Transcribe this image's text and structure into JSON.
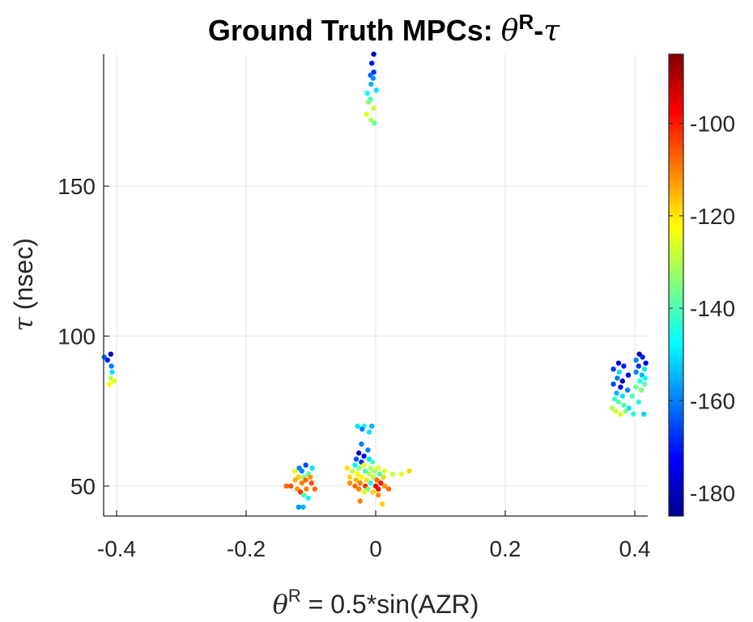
{
  "chart_data": {
    "type": "scatter",
    "title": {
      "prefix": "Ground Truth MPCs: ",
      "theta": "θ",
      "sup": "R",
      "dash": "-",
      "tau": "τ"
    },
    "xlabel": {
      "theta": "θ",
      "sup": "R",
      "rest": " = 0.5*sin(AZR)"
    },
    "ylabel": {
      "tau": "τ",
      "rest": " (nsec)"
    },
    "xlim": [
      -0.42,
      0.42
    ],
    "ylim": [
      40,
      194
    ],
    "xticks": [
      {
        "value": -0.4,
        "label": "-0.4"
      },
      {
        "value": -0.2,
        "label": "-0.2"
      },
      {
        "value": 0,
        "label": "0"
      },
      {
        "value": 0.2,
        "label": "0.2"
      },
      {
        "value": 0.4,
        "label": "0.4"
      }
    ],
    "yticks": [
      {
        "value": 50,
        "label": "50"
      },
      {
        "value": 100,
        "label": "100"
      },
      {
        "value": 150,
        "label": "150"
      }
    ],
    "grid": true,
    "colorbar": {
      "colormap": "jet",
      "clim": [
        -185,
        -85
      ],
      "ticks": [
        {
          "value": -100,
          "label": "-100"
        },
        {
          "value": -120,
          "label": "-120"
        },
        {
          "value": -140,
          "label": "-140"
        },
        {
          "value": -160,
          "label": "-160"
        },
        {
          "value": -180,
          "label": "-180"
        }
      ]
    },
    "points": [
      [
        -0.003,
        194,
        -178
      ],
      [
        -0.006,
        191,
        -172
      ],
      [
        -0.003,
        188,
        -168
      ],
      [
        -0.008,
        187,
        -162
      ],
      [
        -0.004,
        186,
        -158
      ],
      [
        -0.007,
        184,
        -155
      ],
      [
        0.001,
        182,
        -150
      ],
      [
        -0.013,
        181,
        -146
      ],
      [
        -0.008,
        179,
        -140
      ],
      [
        -0.011,
        178,
        -135
      ],
      [
        -0.003,
        176,
        -128
      ],
      [
        -0.014,
        174,
        -125
      ],
      [
        -0.007,
        172,
        -130
      ],
      [
        -0.002,
        171,
        -138
      ],
      [
        -0.419,
        93,
        -162
      ],
      [
        -0.409,
        94,
        -178
      ],
      [
        -0.414,
        92,
        -170
      ],
      [
        -0.408,
        90,
        -160
      ],
      [
        -0.407,
        88,
        -150
      ],
      [
        -0.409,
        86,
        -130
      ],
      [
        -0.404,
        85,
        -125
      ],
      [
        -0.411,
        84,
        -122
      ],
      [
        0.375,
        91,
        -175
      ],
      [
        0.383,
        90,
        -170
      ],
      [
        0.367,
        89,
        -168
      ],
      [
        0.376,
        88,
        -150
      ],
      [
        0.39,
        87,
        -175
      ],
      [
        0.373,
        86,
        -160
      ],
      [
        0.381,
        85,
        -180
      ],
      [
        0.367,
        84,
        -165
      ],
      [
        0.378,
        83,
        -172
      ],
      [
        0.389,
        82,
        -160
      ],
      [
        0.372,
        81,
        -155
      ],
      [
        0.381,
        80,
        -150
      ],
      [
        0.369,
        79,
        -142
      ],
      [
        0.375,
        78,
        -138
      ],
      [
        0.383,
        77,
        -140
      ],
      [
        0.365,
        76,
        -130
      ],
      [
        0.37,
        75,
        -128
      ],
      [
        0.378,
        74,
        -126
      ],
      [
        0.386,
        75,
        -135
      ],
      [
        0.407,
        94,
        -178
      ],
      [
        0.412,
        93,
        -170
      ],
      [
        0.402,
        92,
        -160
      ],
      [
        0.417,
        91,
        -175
      ],
      [
        0.406,
        90,
        -168
      ],
      [
        0.415,
        89,
        -150
      ],
      [
        0.402,
        88,
        -160
      ],
      [
        0.411,
        87,
        -155
      ],
      [
        0.416,
        86,
        -148
      ],
      [
        0.408,
        85,
        -145
      ],
      [
        0.415,
        84,
        -140
      ],
      [
        0.402,
        83,
        -138
      ],
      [
        0.41,
        82,
        -135
      ],
      [
        0.396,
        80,
        -140
      ],
      [
        0.406,
        78,
        -145
      ],
      [
        0.391,
        76,
        -150
      ],
      [
        0.414,
        74,
        -152
      ],
      [
        0.398,
        74,
        -145
      ],
      [
        -0.108,
        57,
        -165
      ],
      [
        -0.118,
        56,
        -160
      ],
      [
        -0.098,
        56,
        -150
      ],
      [
        -0.125,
        55,
        -125
      ],
      [
        -0.114,
        55,
        -160
      ],
      [
        -0.104,
        54,
        -140
      ],
      [
        -0.111,
        53,
        -135
      ],
      [
        -0.119,
        53,
        -118
      ],
      [
        -0.101,
        53,
        -112
      ],
      [
        -0.124,
        52,
        -115
      ],
      [
        -0.108,
        52,
        -108
      ],
      [
        -0.114,
        51,
        -110
      ],
      [
        -0.099,
        51,
        -105
      ],
      [
        -0.138,
        50,
        -108
      ],
      [
        -0.131,
        50,
        -105
      ],
      [
        -0.121,
        49,
        -112
      ],
      [
        -0.107,
        49,
        -110
      ],
      [
        -0.094,
        49,
        -108
      ],
      [
        -0.116,
        48,
        -102
      ],
      [
        -0.111,
        47,
        -140
      ],
      [
        -0.104,
        46,
        -148
      ],
      [
        -0.119,
        43,
        -158
      ],
      [
        -0.112,
        43,
        -155
      ],
      [
        -0.028,
        70,
        -150
      ],
      [
        -0.018,
        70,
        -148
      ],
      [
        -0.006,
        70,
        -155
      ],
      [
        -0.021,
        69,
        -160
      ],
      [
        -0.01,
        68,
        -150
      ],
      [
        -0.022,
        64,
        -160
      ],
      [
        -0.012,
        62,
        -160
      ],
      [
        -0.026,
        61,
        -178
      ],
      [
        -0.018,
        60,
        -172
      ],
      [
        -0.03,
        59,
        -165
      ],
      [
        -0.01,
        59,
        -150
      ],
      [
        -0.022,
        58,
        -168
      ],
      [
        -0.005,
        58,
        -140
      ],
      [
        -0.032,
        57,
        -148
      ],
      [
        -0.018,
        57,
        -125
      ],
      [
        -0.044,
        56,
        -120
      ],
      [
        -0.026,
        56,
        -135
      ],
      [
        -0.008,
        56,
        -130
      ],
      [
        0.004,
        56,
        -125
      ],
      [
        -0.036,
        55,
        -128
      ],
      [
        -0.016,
        55,
        -140
      ],
      [
        -0.002,
        55,
        -132
      ],
      [
        0.014,
        55,
        -125
      ],
      [
        -0.028,
        54,
        -122
      ],
      [
        -0.01,
        54,
        -130
      ],
      [
        0.006,
        54,
        -140
      ],
      [
        0.052,
        55,
        -118
      ],
      [
        0.04,
        54,
        -125
      ],
      [
        0.026,
        54,
        -128
      ],
      [
        -0.04,
        53,
        -118
      ],
      [
        -0.022,
        53,
        -122
      ],
      [
        -0.004,
        53,
        -130
      ],
      [
        0.012,
        53,
        -118
      ],
      [
        -0.03,
        52,
        -115
      ],
      [
        -0.014,
        52,
        -120
      ],
      [
        0.002,
        52,
        -108
      ],
      [
        -0.04,
        51,
        -112
      ],
      [
        -0.024,
        51,
        -110
      ],
      [
        -0.008,
        51,
        -145
      ],
      [
        0.008,
        51,
        -100
      ],
      [
        -0.032,
        50,
        -108
      ],
      [
        -0.016,
        50,
        -102
      ],
      [
        0.0,
        50,
        -95
      ],
      [
        0.014,
        50,
        -112
      ],
      [
        -0.026,
        49,
        -110
      ],
      [
        -0.012,
        49,
        -135
      ],
      [
        0.004,
        49,
        -98
      ],
      [
        0.02,
        49,
        -108
      ],
      [
        -0.018,
        48,
        -125
      ],
      [
        -0.004,
        48,
        -118
      ],
      [
        0.004,
        47,
        -112
      ],
      [
        -0.024,
        45,
        -110
      ],
      [
        0.01,
        44,
        -118
      ]
    ]
  }
}
